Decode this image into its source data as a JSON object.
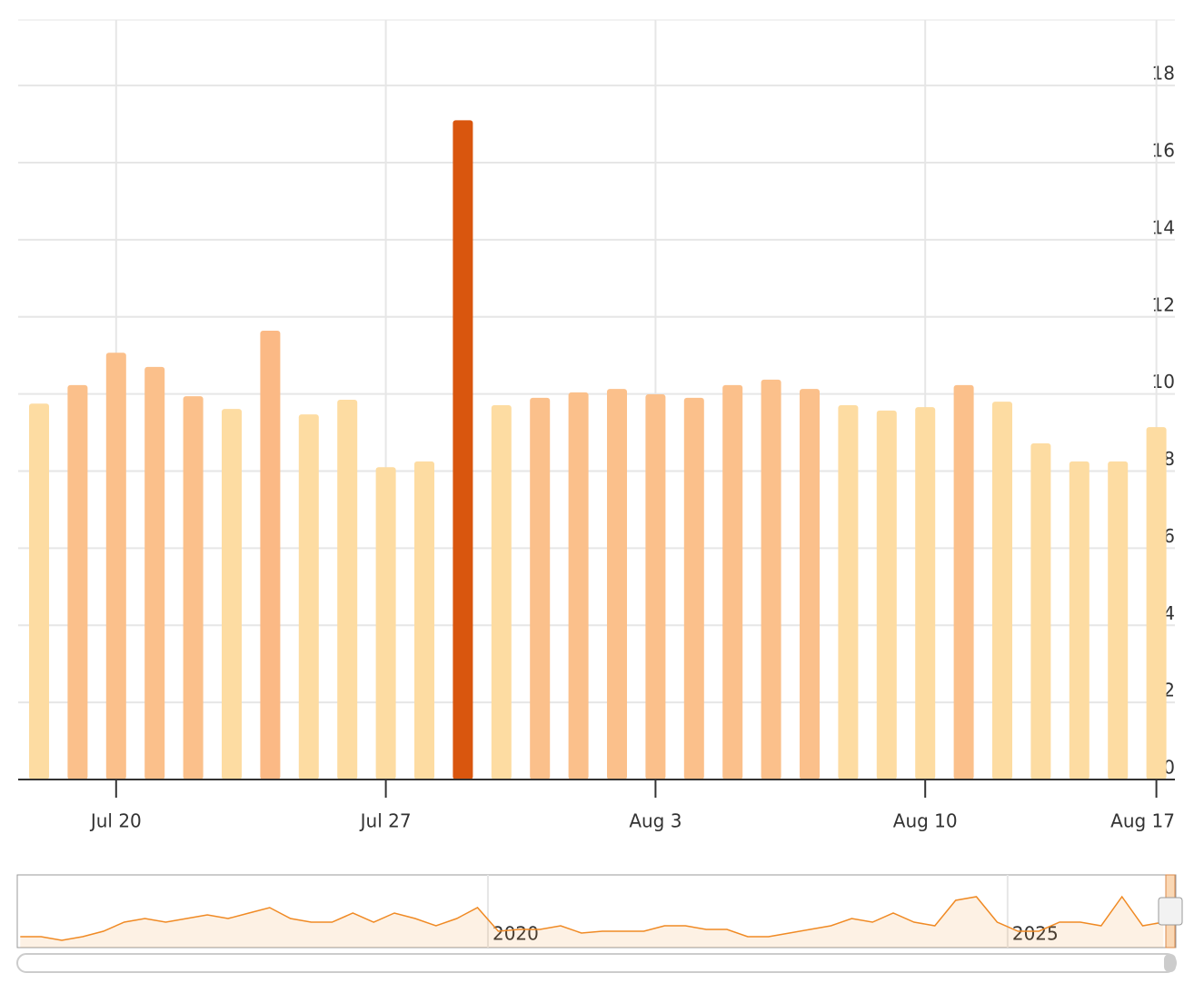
{
  "chart_data": [
    {
      "type": "bar",
      "categories": [
        null,
        null,
        "Jul 20",
        null,
        null,
        null,
        null,
        null,
        null,
        "Jul 27",
        null,
        null,
        null,
        null,
        null,
        null,
        "Aug 3",
        null,
        null,
        null,
        null,
        null,
        null,
        "Aug 10",
        null,
        null,
        null,
        null,
        null,
        "Aug 17"
      ],
      "values": [
        9.75,
        10.23,
        11.07,
        10.7,
        9.94,
        9.61,
        11.64,
        9.47,
        9.85,
        8.1,
        8.25,
        17.1,
        9.71,
        9.9,
        10.04,
        10.13,
        9.99,
        9.9,
        10.23,
        10.37,
        10.13,
        9.71,
        9.57,
        9.66,
        10.23,
        9.8,
        8.72,
        8.25,
        8.25,
        9.14
      ],
      "colors": [
        "#fddca2",
        "#fbc08b",
        "#fbc08b",
        "#fbc08b",
        "#fbc08b",
        "#fddca2",
        "#fbb985",
        "#fddca2",
        "#fddca2",
        "#fddca2",
        "#fddca2",
        "#d9560e",
        "#fddca2",
        "#fbc08b",
        "#fbc08b",
        "#fbc08b",
        "#fbc08b",
        "#fbc08b",
        "#fbc08b",
        "#fbc08b",
        "#fbc08b",
        "#fddca2",
        "#fddca2",
        "#fddca2",
        "#fbc08b",
        "#fddca2",
        "#fddca2",
        "#fddca2",
        "#fddca2",
        "#fddca2"
      ],
      "ylim": [
        0,
        19.7
      ],
      "yticks": [
        0,
        2,
        4,
        6,
        8,
        10,
        12,
        14,
        16,
        18
      ],
      "grid": true
    },
    {
      "type": "area",
      "x": [
        2015.5,
        2015.7,
        2015.9,
        2016.1,
        2016.3,
        2016.5,
        2016.7,
        2016.9,
        2017.1,
        2017.3,
        2017.5,
        2017.7,
        2017.9,
        2018.1,
        2018.3,
        2018.5,
        2018.7,
        2018.9,
        2019.1,
        2019.3,
        2019.5,
        2019.7,
        2019.9,
        2020.1,
        2020.3,
        2020.5,
        2020.7,
        2020.9,
        2021.1,
        2021.3,
        2021.5,
        2021.7,
        2021.9,
        2022.1,
        2022.3,
        2022.5,
        2022.7,
        2022.9,
        2023.1,
        2023.3,
        2023.5,
        2023.7,
        2023.9,
        2024.1,
        2024.3,
        2024.5,
        2024.7,
        2024.9,
        2025.1,
        2025.3,
        2025.5,
        2025.7,
        2025.9,
        2026.1,
        2026.3,
        2026.5
      ],
      "values": [
        3,
        3,
        2,
        3,
        4.5,
        7,
        8,
        7,
        8,
        9,
        8,
        9.5,
        11,
        8,
        7,
        7,
        9.5,
        7,
        9.5,
        8,
        6,
        8,
        11,
        4.5,
        5,
        5,
        6,
        4,
        4.5,
        4.5,
        4.5,
        6,
        6,
        5,
        5,
        3,
        3,
        4,
        5,
        6,
        8,
        7,
        9.5,
        7,
        6,
        13,
        14,
        7,
        4.5,
        4.5,
        7,
        7,
        6,
        14,
        6,
        7
      ],
      "color": "#f08a24",
      "xlim": [
        2015.48,
        2026.61
      ],
      "ylim": [
        0,
        20
      ],
      "xticks": [
        2020,
        2025
      ]
    }
  ]
}
